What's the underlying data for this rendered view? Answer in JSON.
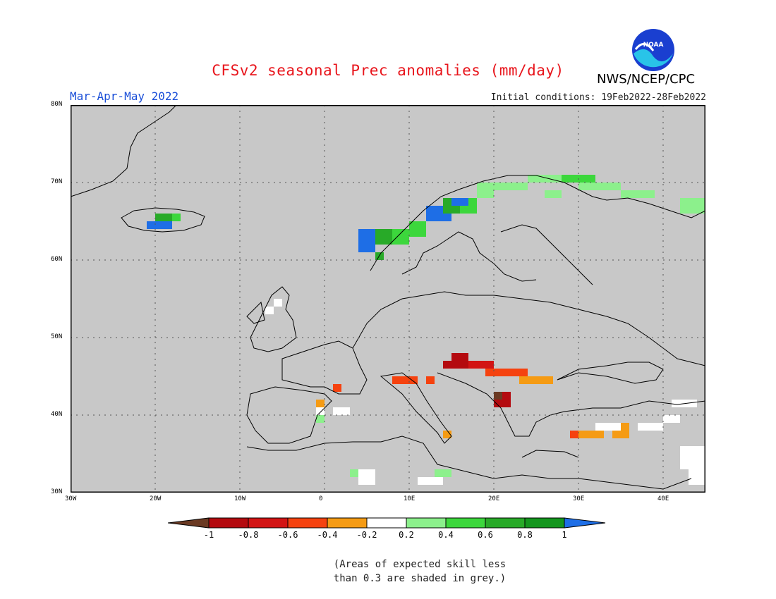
{
  "title": "CFSv2 seasonal Prec anomalies (mm/day)",
  "period": "Mar-Apr-May 2022",
  "initial_conditions": "Initial conditions: 19Feb2022-28Feb2022",
  "organization": "NWS/NCEP/CPC",
  "logo_text": "NOAA",
  "note_line1": "(Areas of expected skill less",
  "note_line2": "than 0.3 are shaded in grey.)",
  "map": {
    "lon_labels": [
      "30W",
      "20W",
      "10W",
      "0",
      "10E",
      "20E",
      "30E",
      "40E"
    ],
    "lat_labels": [
      "80N",
      "70N",
      "60N",
      "50N",
      "40N",
      "30N"
    ],
    "lon_range": [
      -30,
      45
    ],
    "lat_range": [
      30,
      80
    ],
    "background_color": "#c8c8c8",
    "grid": "dotted"
  },
  "colorbar": {
    "labels": [
      "-1",
      "-0.8",
      "-0.6",
      "-0.4",
      "-0.2",
      "0.2",
      "0.4",
      "0.6",
      "0.8",
      "1"
    ],
    "colors": [
      "#6b3a23",
      "#b40a0f",
      "#d21414",
      "#f5420f",
      "#f59b14",
      "#ffffff",
      "#8cf08c",
      "#3cd73c",
      "#28aa28",
      "#14961e",
      "#1e6ee6"
    ]
  }
}
